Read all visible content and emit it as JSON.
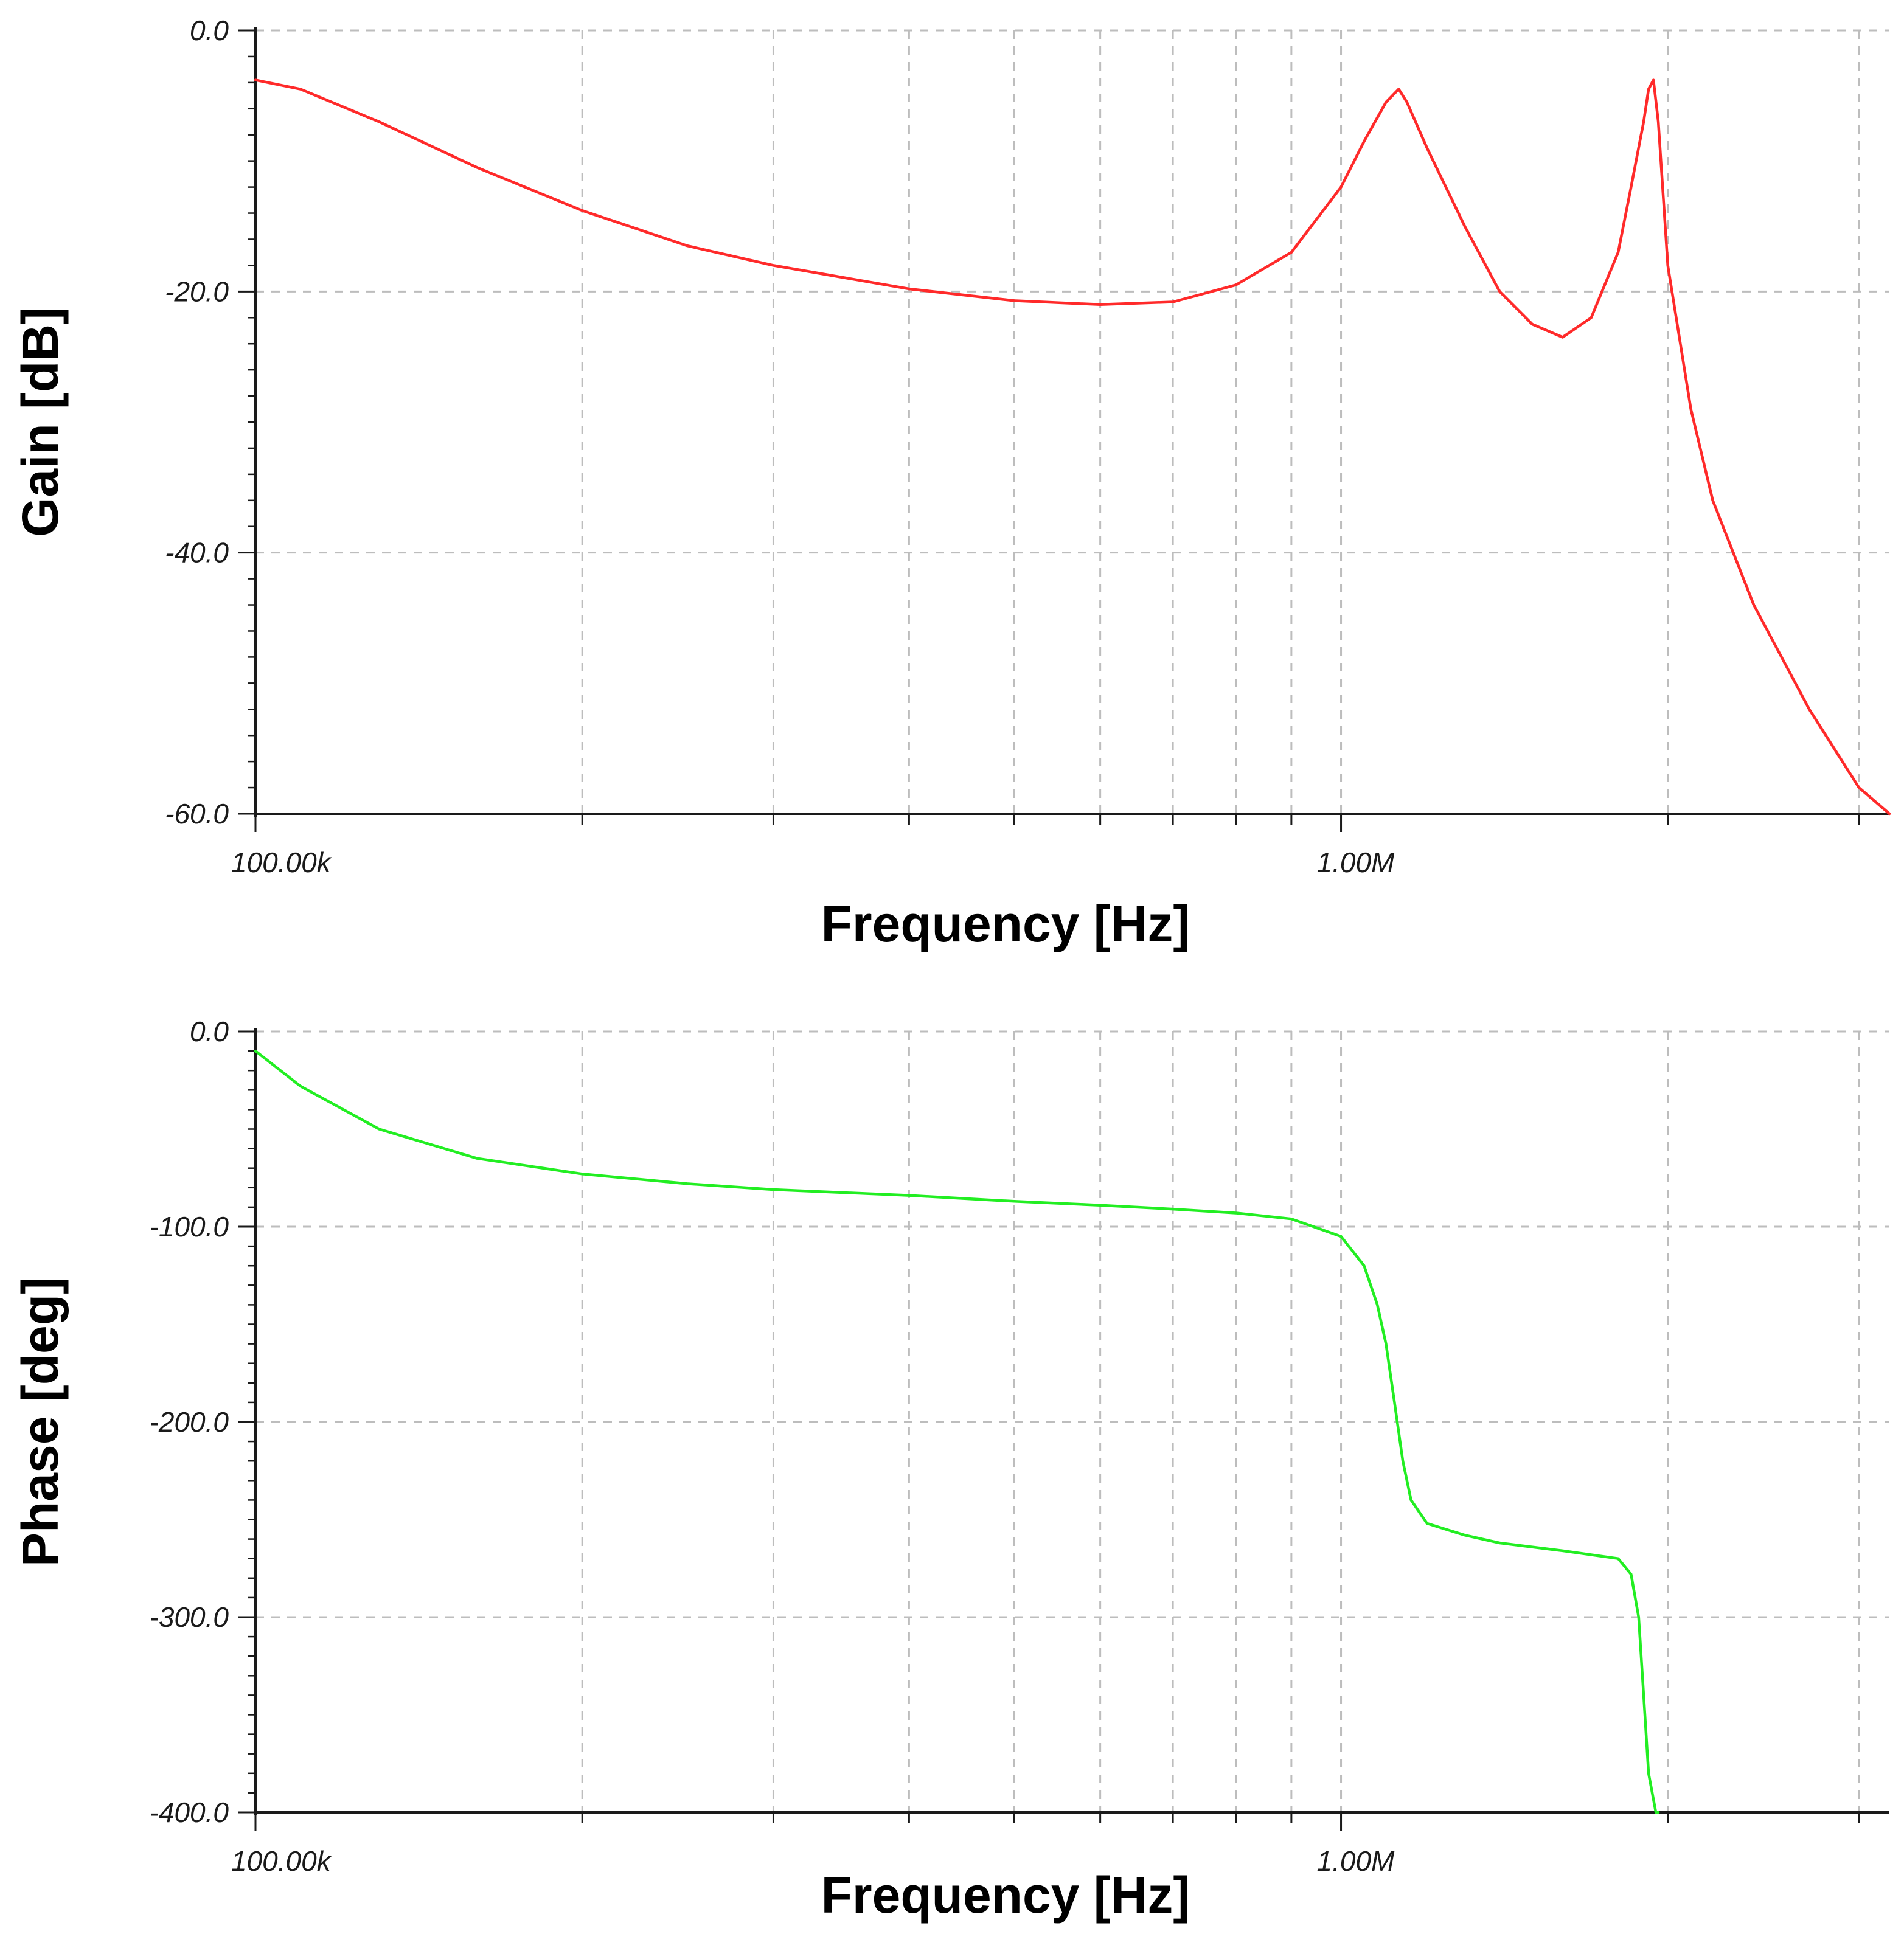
{
  "chart_data": [
    {
      "type": "line",
      "title": "",
      "xlabel": "Frequency [Hz]",
      "ylabel": "Gain [dB]",
      "xscale": "log",
      "xlim": [
        100000,
        3200000
      ],
      "ylim": [
        -60,
        0
      ],
      "grid": true,
      "x_tick_values": [
        100000,
        1000000
      ],
      "x_tick_labels": [
        "100.00k",
        "1.00M"
      ],
      "y_ticks": [
        0,
        -20,
        -40,
        -60
      ],
      "y_tick_labels": [
        "0.0",
        "-20.0",
        "-40.0",
        "-60.0"
      ],
      "color": "#ff2a2a",
      "series": [
        {
          "name": "Gain",
          "x": [
            100000,
            110000,
            130000,
            160000,
            200000,
            250000,
            300000,
            400000,
            500000,
            600000,
            700000,
            800000,
            900000,
            1000000,
            1050000,
            1100000,
            1130000,
            1150000,
            1200000,
            1300000,
            1400000,
            1500000,
            1600000,
            1700000,
            1800000,
            1850000,
            1900000,
            1920000,
            1940000,
            1960000,
            2000000,
            2100000,
            2200000,
            2400000,
            2700000,
            3000000,
            3200000
          ],
          "y": [
            -3.8,
            -4.5,
            -7.0,
            -10.5,
            -13.8,
            -16.5,
            -18.0,
            -19.8,
            -20.7,
            -21.0,
            -20.8,
            -19.5,
            -17.0,
            -12.0,
            -8.5,
            -5.5,
            -4.5,
            -5.5,
            -9.0,
            -15.0,
            -20.0,
            -22.5,
            -23.5,
            -22.0,
            -17.0,
            -12.0,
            -7.0,
            -4.5,
            -3.8,
            -7.0,
            -18.0,
            -29.0,
            -36.0,
            -44.0,
            -52.0,
            -58.0,
            -60.0
          ]
        }
      ]
    },
    {
      "type": "line",
      "title": "",
      "xlabel": "Frequency [Hz]",
      "ylabel": "Phase [deg]",
      "xscale": "log",
      "xlim": [
        100000,
        3200000
      ],
      "ylim": [
        -400,
        0
      ],
      "grid": true,
      "x_tick_values": [
        100000,
        1000000
      ],
      "x_tick_labels": [
        "100.00k",
        "1.00M"
      ],
      "y_ticks": [
        0,
        -100,
        -200,
        -300,
        -400
      ],
      "y_tick_labels": [
        "0.0",
        "-100.0",
        "-200.0",
        "-300.0",
        "-400.0"
      ],
      "color": "#22ee22",
      "series": [
        {
          "name": "Phase",
          "x": [
            100000,
            110000,
            130000,
            160000,
            200000,
            250000,
            300000,
            400000,
            500000,
            600000,
            700000,
            800000,
            900000,
            1000000,
            1050000,
            1080000,
            1100000,
            1120000,
            1140000,
            1160000,
            1200000,
            1300000,
            1400000,
            1600000,
            1800000,
            1850000,
            1880000,
            1900000,
            1920000,
            1950000,
            1960000
          ],
          "y": [
            -10,
            -28,
            -50,
            -65,
            -73,
            -78,
            -81,
            -84,
            -87,
            -89,
            -91,
            -93,
            -96,
            -105,
            -120,
            -140,
            -160,
            -190,
            -220,
            -240,
            -252,
            -258,
            -262,
            -266,
            -270,
            -278,
            -300,
            -340,
            -380,
            -400,
            -400
          ]
        }
      ]
    }
  ]
}
